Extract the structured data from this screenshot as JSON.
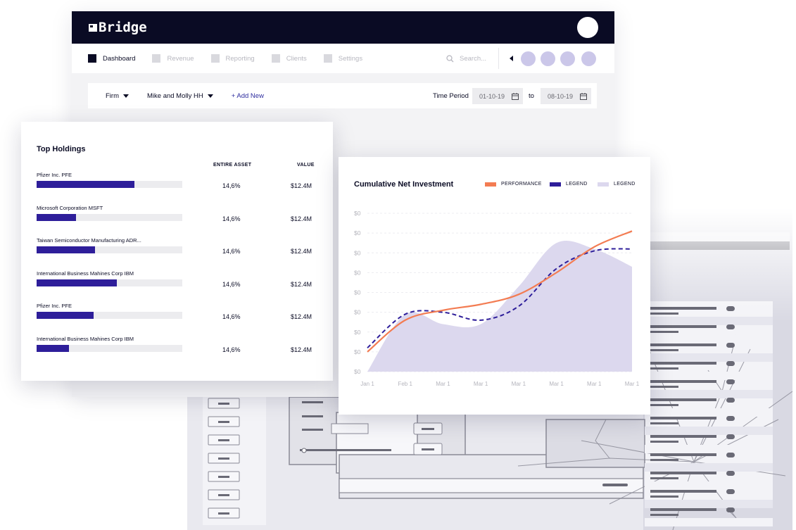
{
  "app": {
    "brand": "Bridge",
    "nav": [
      {
        "label": "Dashboard",
        "active": true
      },
      {
        "label": "Revenue",
        "active": false
      },
      {
        "label": "Reporting",
        "active": false
      },
      {
        "label": "Clients",
        "active": false
      },
      {
        "label": "Settings",
        "active": false
      }
    ],
    "search_placeholder": "Search...",
    "filters": {
      "firm": "Firm",
      "household": "Mike and Molly HH",
      "add_new": "+ Add New",
      "time_period_label": "Time Period",
      "date_from": "01-10-19",
      "to_label": "to",
      "date_to": "08-10-19"
    }
  },
  "holdings": {
    "title": "Top Holdings",
    "col_asset": "ENTIRE ASSET",
    "col_value": "VALUE",
    "rows": [
      {
        "name": "Pfizer Inc. PFE",
        "pct": "14,6%",
        "value": "$12.4M",
        "fill": 0.67
      },
      {
        "name": "Microsoft Corporation MSFT",
        "pct": "14,6%",
        "value": "$12.4M",
        "fill": 0.27
      },
      {
        "name": "Taiwan Semiconductor Manufacturing ADR...",
        "pct": "14,6%",
        "value": "$12.4M",
        "fill": 0.4
      },
      {
        "name": "International Business Mahines Corp IBM",
        "pct": "14,6%",
        "value": "$12.4M",
        "fill": 0.55
      },
      {
        "name": "Pfizer Inc. PFE",
        "pct": "14,6%",
        "value": "$12.4M",
        "fill": 0.39
      },
      {
        "name": "International Business Mahines Corp IBM",
        "pct": "14,6%",
        "value": "$12.4M",
        "fill": 0.22
      }
    ]
  },
  "chart_data": {
    "type": "line",
    "title": "Cumulative Net Investment",
    "legend_position": "top-right",
    "x": [
      "Jan 1",
      "Feb 1",
      "Mar 1",
      "Mar 1",
      "Mar 1",
      "Mar 1",
      "Mar 1",
      "Mar 1"
    ],
    "y_ticks": [
      "$0",
      "$0",
      "$0",
      "$0",
      "$0",
      "$0",
      "$0",
      "$0",
      "$0"
    ],
    "ylim": [
      0,
      8
    ],
    "grid": true,
    "series": [
      {
        "name": "PERFORMANCE",
        "style": "solid",
        "color": "#f37c52",
        "values": [
          1.0,
          2.6,
          3.1,
          3.4,
          3.9,
          5.0,
          6.3,
          7.1
        ]
      },
      {
        "name": "LEGEND",
        "style": "dashed",
        "color": "#2e1e9a",
        "values": [
          1.2,
          2.9,
          3.0,
          2.6,
          3.3,
          5.2,
          6.1,
          6.2
        ]
      },
      {
        "name": "LEGEND",
        "style": "area",
        "color": "#dcd8ee",
        "values": [
          0.0,
          2.9,
          2.4,
          2.4,
          4.3,
          6.5,
          6.2,
          5.3
        ]
      }
    ]
  }
}
